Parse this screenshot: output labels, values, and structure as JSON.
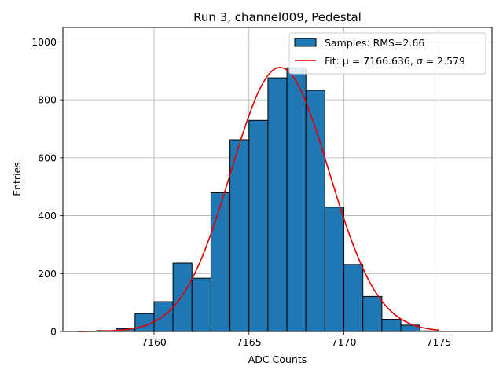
{
  "chart_data": {
    "type": "bar",
    "title": "Run 3, channel009, Pedestal",
    "xlabel": "ADC Counts",
    "ylabel": "Entries",
    "xlim": [
      7155.2,
      7177.8
    ],
    "ylim": [
      0,
      1050
    ],
    "xticks": [
      7160,
      7165,
      7170,
      7175
    ],
    "yticks": [
      0,
      200,
      400,
      600,
      800,
      1000
    ],
    "grid": true,
    "legend_position": "top-right",
    "histogram": {
      "name": "Samples: RMS=2.66",
      "color": "#1f77b4",
      "edge_color": "#000000",
      "bins": [
        {
          "x0": 7156.0,
          "x1": 7157.0,
          "count": 1
        },
        {
          "x0": 7157.0,
          "x1": 7158.0,
          "count": 3
        },
        {
          "x0": 7158.0,
          "x1": 7159.0,
          "count": 10
        },
        {
          "x0": 7159.0,
          "x1": 7160.0,
          "count": 62
        },
        {
          "x0": 7160.0,
          "x1": 7161.0,
          "count": 103
        },
        {
          "x0": 7161.0,
          "x1": 7162.0,
          "count": 236
        },
        {
          "x0": 7162.0,
          "x1": 7163.0,
          "count": 184
        },
        {
          "x0": 7163.0,
          "x1": 7164.0,
          "count": 479
        },
        {
          "x0": 7164.0,
          "x1": 7165.0,
          "count": 662
        },
        {
          "x0": 7165.0,
          "x1": 7166.0,
          "count": 729
        },
        {
          "x0": 7166.0,
          "x1": 7167.0,
          "count": 876
        },
        {
          "x0": 7167.0,
          "x1": 7168.0,
          "count": 911
        },
        {
          "x0": 7168.0,
          "x1": 7169.0,
          "count": 833
        },
        {
          "x0": 7169.0,
          "x1": 7170.0,
          "count": 429
        },
        {
          "x0": 7170.0,
          "x1": 7171.0,
          "count": 231
        },
        {
          "x0": 7171.0,
          "x1": 7172.0,
          "count": 121
        },
        {
          "x0": 7172.0,
          "x1": 7173.0,
          "count": 42
        },
        {
          "x0": 7173.0,
          "x1": 7174.0,
          "count": 22
        },
        {
          "x0": 7174.0,
          "x1": 7175.0,
          "count": 2
        }
      ]
    },
    "fit": {
      "name": "Fit: μ = 7166.636, σ = 2.579",
      "color": "#e00000",
      "type": "gaussian",
      "mu": 7166.636,
      "sigma": 2.579,
      "amplitude": 912,
      "x_range": [
        7156.0,
        7175.0
      ]
    }
  }
}
